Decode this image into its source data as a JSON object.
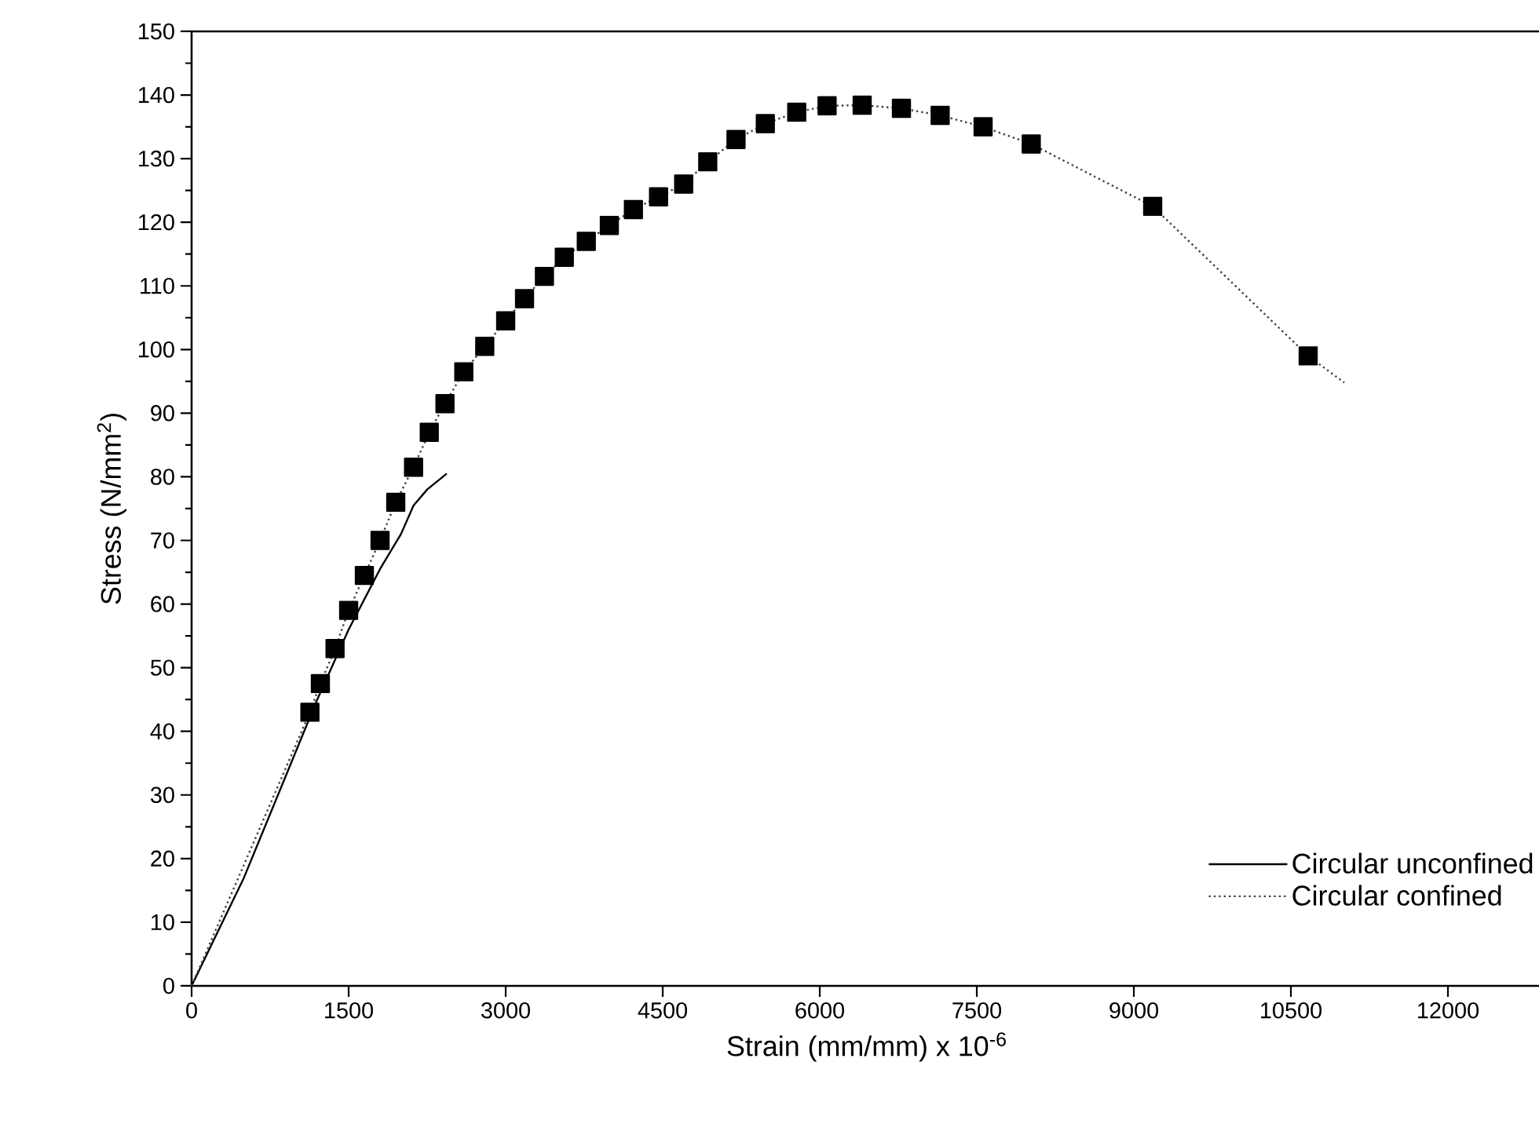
{
  "chart_data": {
    "type": "line",
    "xlabel": "Strain (mm/mm) x 10$^{-6}$",
    "ylabel": "Stress (N/mm$^{2}$)",
    "xlim": [
      0,
      12900
    ],
    "xticks": [
      0,
      1500,
      3000,
      4500,
      6000,
      7500,
      9000,
      10500,
      12000
    ],
    "ylim": [
      0,
      150
    ],
    "yticks": [
      0,
      10,
      20,
      30,
      40,
      50,
      60,
      70,
      80,
      90,
      100,
      110,
      120,
      130,
      140,
      150
    ],
    "grid": false,
    "legend": "bottom right",
    "series": [
      {
        "name": "Circular unconfined",
        "color": "#000000",
        "line_style": "solid",
        "marker": "none",
        "x": [
          0,
          500,
          1000,
          1200,
          1500,
          1800,
          2000,
          2120,
          2250,
          2437
        ],
        "values": [
          0,
          17,
          37,
          45,
          56,
          65.5,
          71,
          75.5,
          78,
          80.5
        ]
      },
      {
        "name": "Circular confined",
        "color": "#404040",
        "line_style": "dotted",
        "marker": "square",
        "x": [
          0,
          1130,
          1230,
          1370,
          1500,
          1650,
          1800,
          1950,
          2120,
          2270,
          2420,
          2600,
          2800,
          3000,
          3180,
          3370,
          3560,
          3770,
          3990,
          4220,
          4460,
          4700,
          4930,
          5200,
          5480,
          5780,
          6070,
          6405,
          6780,
          7150,
          7560,
          8020,
          9180,
          10665,
          11010
        ],
        "values": [
          0,
          43,
          47.5,
          53,
          59,
          64.5,
          70,
          76,
          81.5,
          87,
          91.5,
          96.5,
          100.5,
          104.5,
          108,
          111.5,
          114.5,
          117,
          119.5,
          122,
          124,
          126,
          129.5,
          133,
          135.5,
          137.3,
          138.3,
          138.4,
          137.9,
          136.8,
          135,
          132.3,
          122.5,
          99,
          94.8
        ]
      }
    ]
  }
}
